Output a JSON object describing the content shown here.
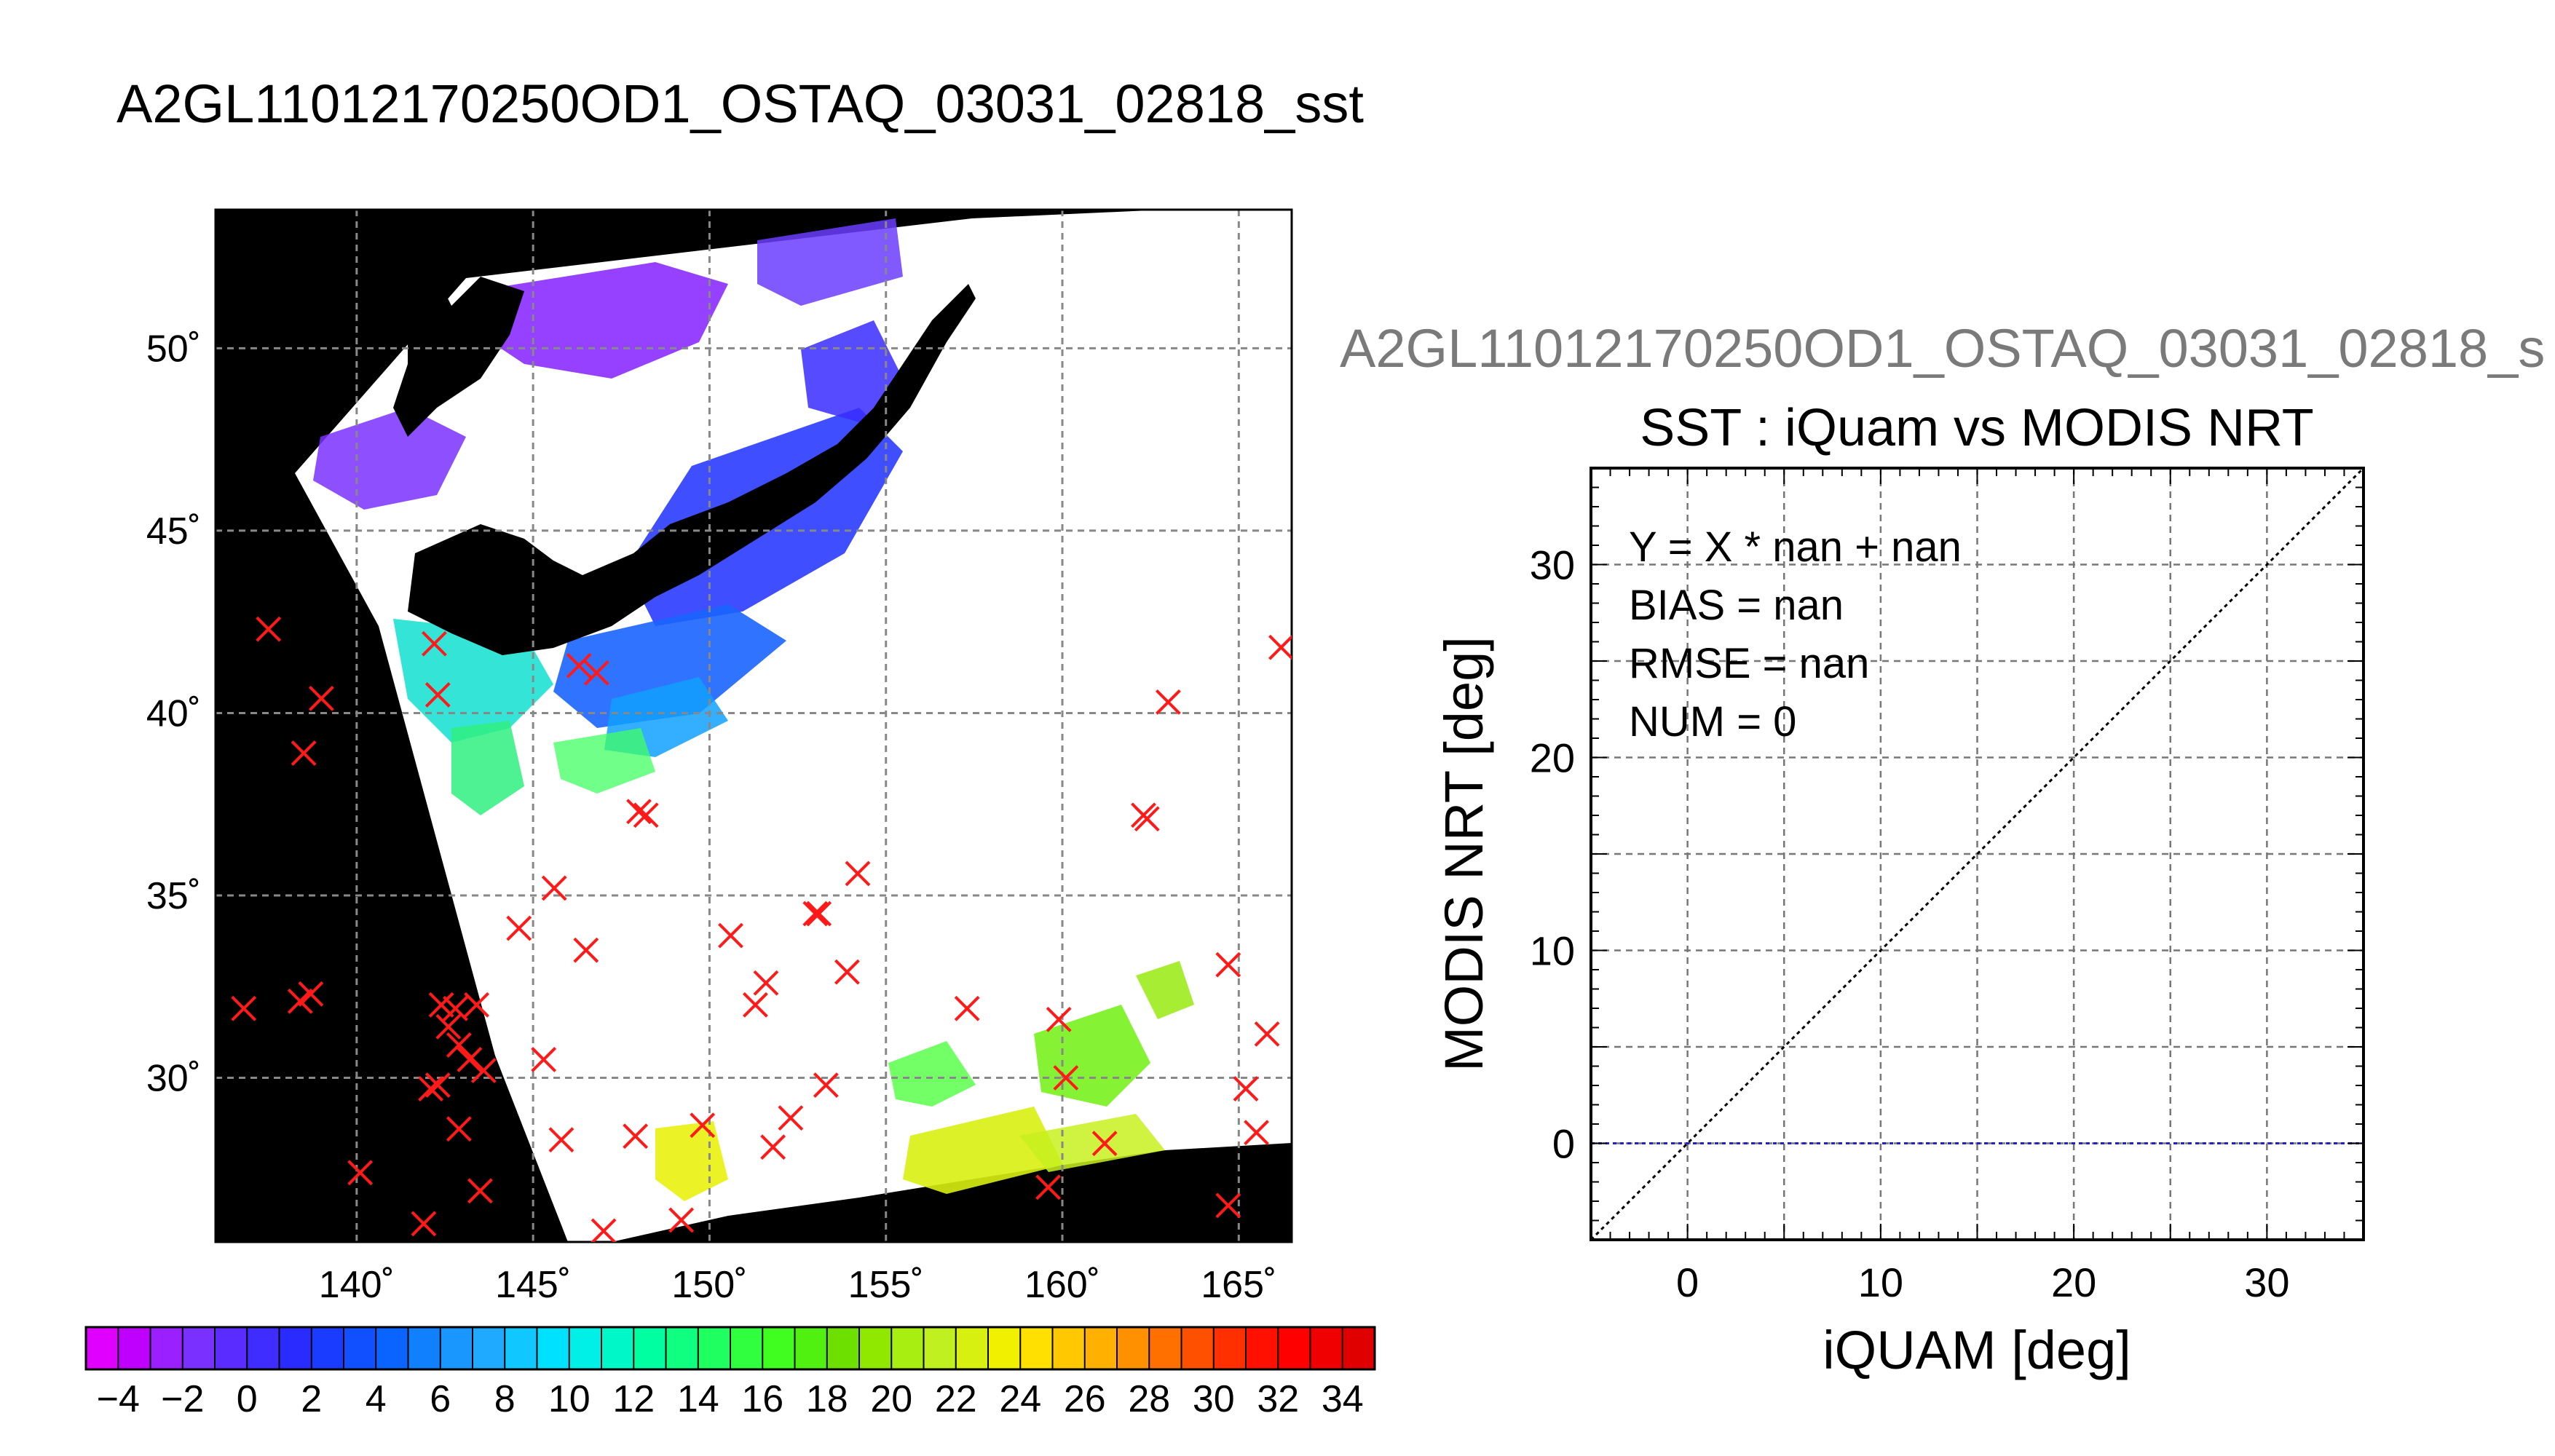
{
  "main_title": "A2GL11012170250OD1_OSTAQ_03031_02818_sst",
  "sub_title": "A2GL11012170250OD1_OSTAQ_03031_02818_s",
  "colors": {
    "land": "#000000",
    "cloud": "#ffffff",
    "marker": "#ff1a1a",
    "identity_line": "#000000",
    "bias_line": "#2222cc"
  },
  "chart_data": [
    {
      "type": "map",
      "lon_ticks": [
        140,
        145,
        150,
        155,
        160,
        165
      ],
      "lat_ticks": [
        30,
        35,
        40,
        45,
        50
      ],
      "lon_labels": [
        "140˚",
        "145˚",
        "150˚",
        "155˚",
        "160˚",
        "165˚"
      ],
      "lat_labels": [
        "30˚",
        "35˚",
        "40˚",
        "45˚",
        "50˚"
      ],
      "lon_range": [
        136,
        166.5
      ],
      "lat_range": [
        25.5,
        53.8
      ],
      "grid": true,
      "colorbar": {
        "min": -5,
        "max": 35,
        "step": 1,
        "tick_values": [
          -4,
          -2,
          0,
          2,
          4,
          6,
          8,
          10,
          12,
          14,
          16,
          18,
          20,
          22,
          24,
          26,
          28,
          30,
          32,
          34
        ],
        "tick_labels": [
          "−4",
          "−2",
          "0",
          "2",
          "4",
          "6",
          "8",
          "10",
          "12",
          "14",
          "16",
          "18",
          "20",
          "22",
          "24",
          "26",
          "28",
          "30",
          "32",
          "34"
        ],
        "colors": [
          "#e000ff",
          "#c000ff",
          "#9a20ff",
          "#7a30ff",
          "#5a2cff",
          "#3f2cff",
          "#2a2cff",
          "#1a3cff",
          "#1050ff",
          "#0a64ff",
          "#1080ff",
          "#1a96ff",
          "#20aaff",
          "#10c8ff",
          "#00e0ff",
          "#00f0e8",
          "#00f8c8",
          "#00ffa0",
          "#10ff80",
          "#20ff60",
          "#30ff40",
          "#40ff20",
          "#50f010",
          "#6ee000",
          "#90e800",
          "#a8ee10",
          "#c0f020",
          "#d8f010",
          "#f0f000",
          "#ffe000",
          "#ffc800",
          "#ffb000",
          "#ff9000",
          "#ff7000",
          "#ff5000",
          "#ff3000",
          "#ff1000",
          "#ff0000",
          "#f00000",
          "#e00000"
        ]
      },
      "insitu_points": [
        [
          137.5,
          42.3
        ],
        [
          139.0,
          40.4
        ],
        [
          138.5,
          38.9
        ],
        [
          136.8,
          31.9
        ],
        [
          138.4,
          32.1
        ],
        [
          138.7,
          32.3
        ],
        [
          142.2,
          41.9
        ],
        [
          142.3,
          40.5
        ],
        [
          146.3,
          41.3
        ],
        [
          146.8,
          41.1
        ],
        [
          148.0,
          37.3
        ],
        [
          148.2,
          37.2
        ],
        [
          145.6,
          35.2
        ],
        [
          144.6,
          34.1
        ],
        [
          146.5,
          33.5
        ],
        [
          150.6,
          33.9
        ],
        [
          151.6,
          32.6
        ],
        [
          151.3,
          32.0
        ],
        [
          153.0,
          34.5
        ],
        [
          153.1,
          34.5
        ],
        [
          154.2,
          35.6
        ],
        [
          153.9,
          32.9
        ],
        [
          157.3,
          31.9
        ],
        [
          162.4,
          37.1
        ],
        [
          162.3,
          37.2
        ],
        [
          163.0,
          40.3
        ],
        [
          166.2,
          41.8
        ],
        [
          164.7,
          33.1
        ],
        [
          165.8,
          31.2
        ],
        [
          165.2,
          29.7
        ],
        [
          165.5,
          28.5
        ],
        [
          142.4,
          32.0
        ],
        [
          142.8,
          31.9
        ],
        [
          142.6,
          31.4
        ],
        [
          143.4,
          32.0
        ],
        [
          142.9,
          30.9
        ],
        [
          143.2,
          30.5
        ],
        [
          143.6,
          30.2
        ],
        [
          142.3,
          29.8
        ],
        [
          142.1,
          29.7
        ],
        [
          142.9,
          28.6
        ],
        [
          145.3,
          30.5
        ],
        [
          140.1,
          27.4
        ],
        [
          141.9,
          26.0
        ],
        [
          143.5,
          26.9
        ],
        [
          145.8,
          28.3
        ],
        [
          147.0,
          25.8
        ],
        [
          147.9,
          28.4
        ],
        [
          149.8,
          28.7
        ],
        [
          149.2,
          26.1
        ],
        [
          151.8,
          28.1
        ],
        [
          152.3,
          28.9
        ],
        [
          153.3,
          29.8
        ],
        [
          159.9,
          31.6
        ],
        [
          160.1,
          30.0
        ],
        [
          159.6,
          27.0
        ],
        [
          161.2,
          28.2
        ],
        [
          164.7,
          26.5
        ]
      ]
    },
    {
      "type": "scatter",
      "title": "SST : iQuam vs MODIS NRT",
      "xlabel": "iQUAM [deg]",
      "ylabel": "MODIS NRT [deg]",
      "xlim": [
        -5,
        35
      ],
      "ylim": [
        -5,
        35
      ],
      "x_ticks": [
        0,
        10,
        20,
        30
      ],
      "y_ticks": [
        0,
        10,
        20,
        30
      ],
      "x_tick_labels": [
        "0",
        "10",
        "20",
        "30"
      ],
      "y_tick_labels": [
        "0",
        "10",
        "20",
        "30"
      ],
      "grid_step": 5,
      "grid": true,
      "points": [],
      "stats": [
        "Y = X * nan + nan",
        "BIAS = nan",
        "RMSE = nan",
        "NUM = 0"
      ],
      "bias_y": 0
    }
  ]
}
